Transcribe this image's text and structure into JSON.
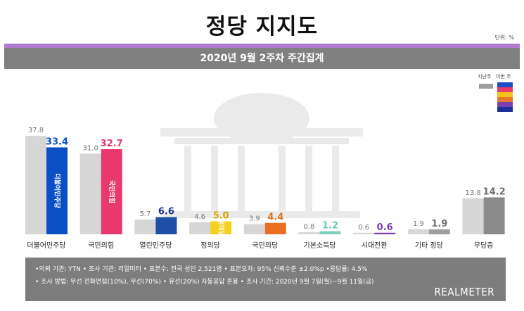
{
  "header": {
    "title": "정당 지지도",
    "unit": "단위: %",
    "subtitle": "2020년 9월 2주차 주간집계"
  },
  "legend": {
    "prev_label": "지난주",
    "curr_label": "이번 주",
    "prev_color": "#9e9e9e",
    "curr_colors": [
      "#1e4fc6",
      "#e8386d",
      "#f2c11c",
      "#e8772e",
      "#7b3fb0",
      "#1e2f9a"
    ]
  },
  "chart_data": {
    "type": "bar",
    "categories": [
      "더불어민주당",
      "국민의힘",
      "열린민주당",
      "정의당",
      "국민의당",
      "기본소득당",
      "시대전환",
      "기타 정당",
      "무당층"
    ],
    "series": [
      {
        "name": "지난주",
        "values": [
          37.8,
          31.0,
          5.7,
          4.6,
          3.9,
          0.8,
          0.6,
          1.9,
          13.8
        ]
      },
      {
        "name": "이번 주",
        "values": [
          33.4,
          32.7,
          6.6,
          5.0,
          4.4,
          1.2,
          0.6,
          1.9,
          14.2
        ]
      }
    ],
    "colors": {
      "previous": "#d6d6d6",
      "current": [
        "#0a4fc4",
        "#e8386d",
        "#1e4fa6",
        "#f7d01e",
        "#ea6f23",
        "#7fcfbf",
        "#7b3fb0",
        "#9e9e9e",
        "#8a8a8a"
      ],
      "current_label": [
        "#0a4fc4",
        "#e8386d",
        "#1e3a8a",
        "#d4a300",
        "#e0701e",
        "#6cc7b0",
        "#7b3fb0",
        "#6e6e6e",
        "#6e6e6e"
      ]
    },
    "bar_marks": [
      "더불어민주당",
      "국민의힘",
      "",
      "정의당",
      "",
      "",
      "",
      "",
      ""
    ],
    "ylim": [
      0,
      40
    ]
  },
  "footer": {
    "line1": "•의뢰 기관: YTN • 조사 기관: 리얼미터 • 표본수: 전국 성인 2,521명 • 표본오차: 95% 신뢰수준 ±2.0%p •응답률: 4.5%",
    "line2": "• 조사 방법: 무선 전화면접(10%), 무선(70%) • 유선(20%) 자동응답 혼용  • 조사 기간: 2020년 9월 7일(월)~9월 11일(금)",
    "brand": "REALMETER"
  }
}
